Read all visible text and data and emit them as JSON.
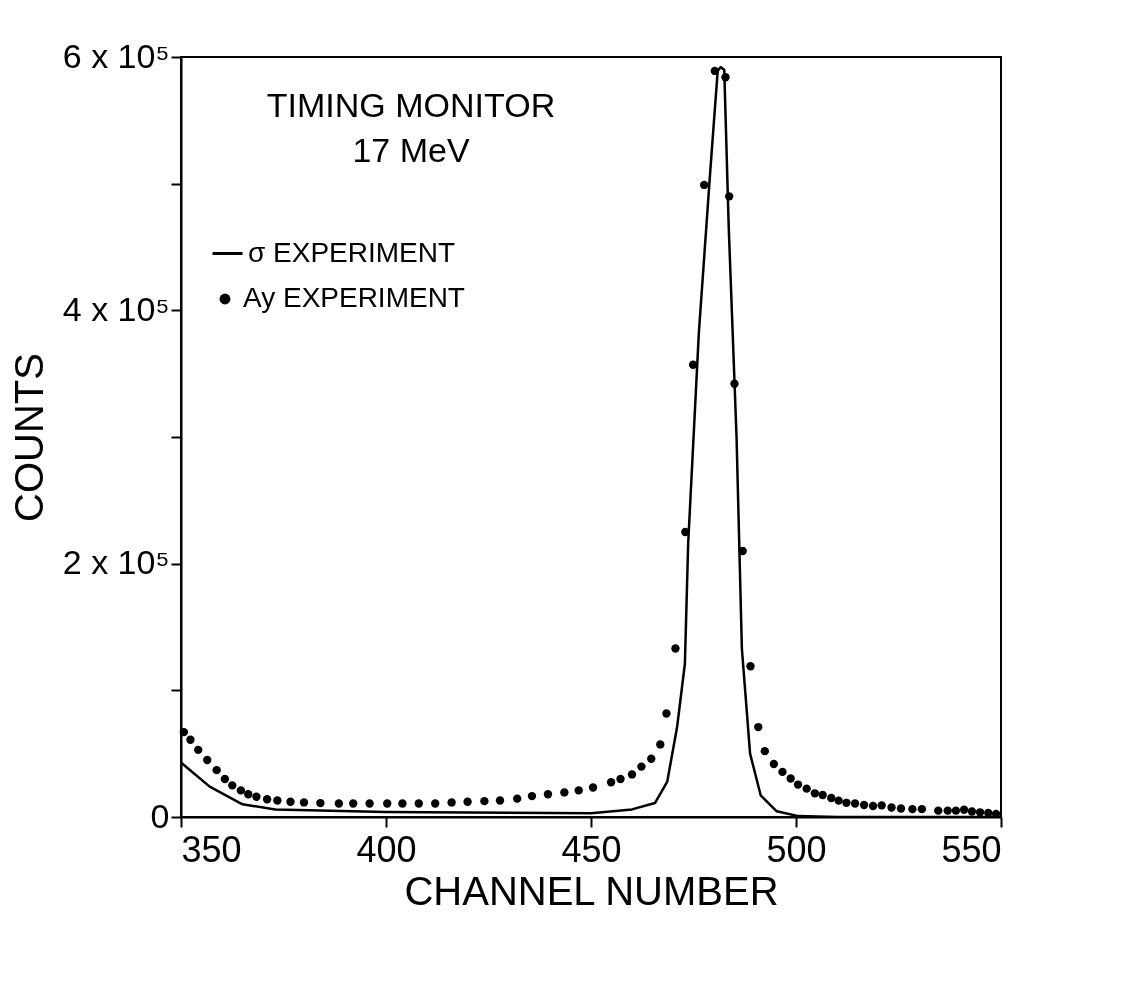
{
  "chart_data": {
    "type": "line",
    "xlabel": "CHANNEL NUMBER",
    "ylabel": "COUNTS",
    "annotations": [
      "TIMING MONITOR",
      "17 MeV"
    ],
    "xlim": [
      350,
      550
    ],
    "xticks": [
      350,
      400,
      450,
      500,
      550
    ],
    "ylim": [
      0,
      600000
    ],
    "yticks": [
      0,
      {
        "value": 100000,
        "label": null
      },
      {
        "value": 200000,
        "label": "2 x 10⁵"
      },
      {
        "value": 300000,
        "label": null
      },
      {
        "value": 400000,
        "label": "4 x 10⁵"
      },
      {
        "value": 500000,
        "label": null
      },
      {
        "value": 600000,
        "label": "6 x 10⁵"
      }
    ],
    "grid": false,
    "legend": "top left",
    "series": [
      {
        "name": "σ EXPERIMENT",
        "type": "line",
        "color": "#000000",
        "line_style": "solid",
        "marker": "none",
        "x": [
          350,
          357,
          365,
          373,
          400,
          450,
          460,
          465.6,
          468.6,
          471,
          472.9,
          473.7,
          476.3,
          479,
          480.9,
          481.6,
          482.5,
          483.6,
          485.5,
          486.8,
          488.8,
          491.4,
          495.3,
          500.6,
          510,
          550
        ],
        "values": [
          43000,
          24000,
          10000,
          6000,
          4000,
          3000,
          6000,
          11000,
          28000,
          71000,
          121000,
          216000,
          382000,
          506000,
          589000,
          592000,
          590000,
          465000,
          300000,
          133000,
          50000,
          17000,
          4500,
          700,
          0,
          0
        ]
      },
      {
        "name": "Ay EXPERIMENT",
        "type": "scatter",
        "color": "#000000",
        "marker": "circle",
        "x": [
          350.7,
          352.3,
          354.2,
          356.4,
          358.7,
          360.7,
          362.5,
          364.6,
          366.4,
          368.4,
          371,
          373.5,
          376.7,
          380,
          384,
          388.5,
          392,
          396,
          400.3,
          404,
          408,
          412,
          416,
          419.9,
          424,
          427.8,
          432,
          435.6,
          439.5,
          443.5,
          447,
          450.5,
          454.9,
          457.2,
          460,
          462.3,
          464.7,
          466.9,
          468.4,
          470.6,
          473,
          474.9,
          477.6,
          480.2,
          482.8,
          483.7,
          485,
          487,
          488.9,
          490.8,
          492.4,
          494.6,
          496.7,
          498.7,
          500.5,
          502.6,
          504.6,
          506.5,
          508.6,
          510.4,
          512.3,
          514.4,
          516.6,
          518.8,
          520.9,
          523.3,
          525.6,
          528.4,
          530.7,
          534.7,
          537,
          539,
          541,
          542.9,
          544.9,
          546.9,
          548.8
        ],
        "values": [
          67000,
          61000,
          53000,
          45000,
          37000,
          30000,
          25000,
          21000,
          18000,
          16000,
          14000,
          13000,
          12000,
          11500,
          11000,
          10700,
          10700,
          10700,
          10700,
          10700,
          10700,
          10700,
          11500,
          12000,
          12500,
          13000,
          14500,
          16500,
          18000,
          19400,
          21000,
          23300,
          27400,
          30000,
          33600,
          39800,
          46000,
          57300,
          81700,
          133000,
          225000,
          357000,
          499000,
          589000,
          584000,
          490000,
          342000,
          210000,
          119000,
          71000,
          52000,
          41800,
          35600,
          30400,
          25600,
          22400,
          18700,
          17400,
          15000,
          12900,
          11200,
          10700,
          9500,
          8700,
          9200,
          7500,
          6700,
          6200,
          6200,
          5000,
          5000,
          5000,
          5700,
          4300,
          3700,
          3200,
          2500
        ]
      }
    ]
  }
}
